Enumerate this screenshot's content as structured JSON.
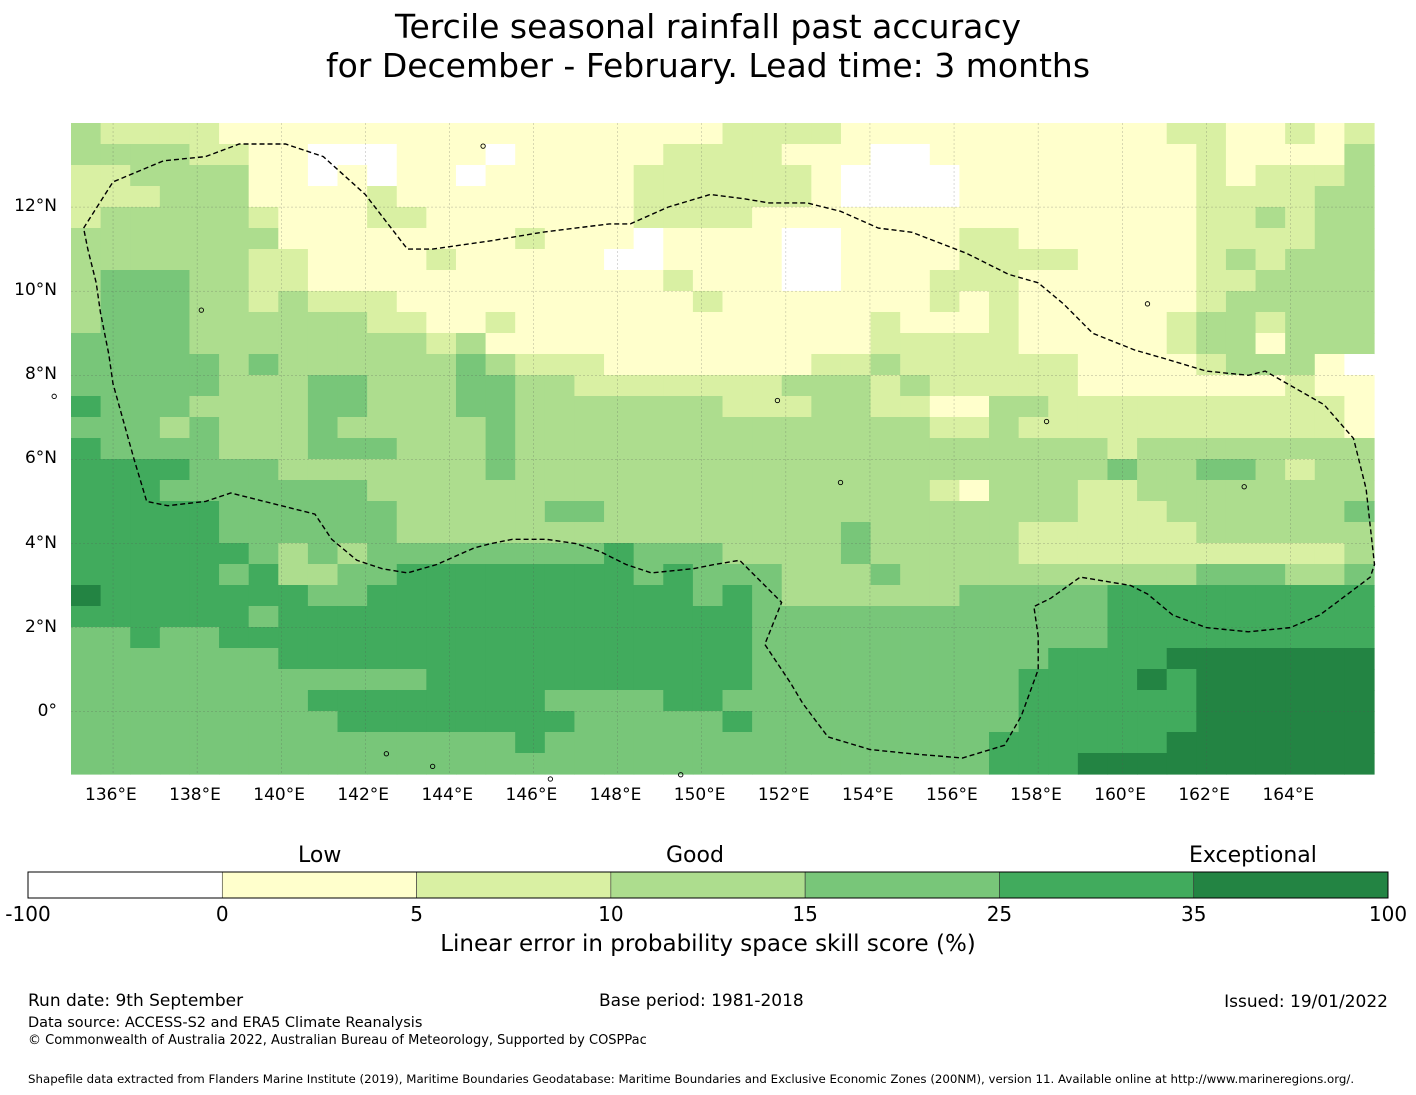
{
  "title_line1": "Tercile seasonal rainfall past accuracy",
  "title_line2": "for December - February. Lead time: 3 months",
  "map": {
    "lon_range": [
      135.0,
      166.0
    ],
    "lat_range": [
      -1.5,
      14.0
    ],
    "cell_deg": 0.83,
    "lon_ticks": [
      "136°E",
      "138°E",
      "140°E",
      "142°E",
      "144°E",
      "146°E",
      "148°E",
      "150°E",
      "152°E",
      "154°E",
      "156°E",
      "158°E",
      "160°E",
      "162°E",
      "164°E"
    ],
    "lat_ticks": [
      "12°N",
      "10°N",
      "8°N",
      "6°N",
      "4°N",
      "2°N",
      "0°"
    ],
    "grid_categories_note": "rows north to south, 0=white(<0) 1=0-5 2=5-10 3=10-15 4=15-25 5=25-35 6=35-100",
    "grid": [
      "32222111111111111111112222111111111112211212",
      "33332211000111011111222211100111111111211113",
      "22333311010110111112222221000011111111212223",
      "22233311112111111112222221000011111111222233",
      "23333321112211111112222111111111111111223233",
      "33333331111111121110111100111122111111222233",
      "33333322111121111100111100111122221111232333",
      "34443322111111111111211100111222111111223333",
      "34443323222111111111121111111212111111233333",
      "34443333332211211111111111121112111112332333",
      "44443333333323111111111111122222111112331333",
      "44444343333334322211111112232222221111233310",
      "44444333443334433222222233323222221111111211",
      "54443333443334433333332223322113322222222221",
      "44434333433333433333333333333223222222222221",
      "54444333444333433333333333333333333233333333",
      "55554443333333433333333333333333333433443233",
      "55544444443333333333333333333213332233333333",
      "55555444444333334433333333333333332223333334",
      "55555444444333333333333333433333222222333333",
      "55555543434444444454443333433333222222222223",
      "55555453344555555554544433343333333333444334",
      "65555555445555555555545433333344444555555555",
      "55555545555555555555555444444444444555555555",
      "44544555555555555555555444444444444555555555",
      "44444445555555555555555444444444455556666666",
      "44444444444455555555555444444444555565666666",
      "44444444555555554444554444444444555555666666",
      "44444444455555555444445444444444555555666666",
      "44444444444444454444444444444445555556666666",
      "44444444444444444444444444444445556666666666"
    ],
    "eez_boundary_lonlat": [
      [
        135.3,
        11.5
      ],
      [
        136.0,
        12.6
      ],
      [
        137.2,
        13.1
      ],
      [
        138.2,
        13.2
      ],
      [
        139.0,
        13.5
      ],
      [
        140.1,
        13.5
      ],
      [
        141.0,
        13.2
      ],
      [
        142.0,
        12.3
      ],
      [
        143.0,
        11.0
      ],
      [
        143.6,
        11.0
      ],
      [
        145.0,
        11.2
      ],
      [
        146.2,
        11.4
      ],
      [
        147.0,
        11.5
      ],
      [
        147.8,
        11.6
      ],
      [
        148.3,
        11.6
      ],
      [
        149.2,
        12.0
      ],
      [
        150.2,
        12.3
      ],
      [
        151.0,
        12.2
      ],
      [
        151.6,
        12.1
      ],
      [
        152.5,
        12.1
      ],
      [
        153.3,
        11.9
      ],
      [
        154.2,
        11.5
      ],
      [
        155.0,
        11.4
      ],
      [
        156.3,
        10.9
      ],
      [
        157.3,
        10.4
      ],
      [
        158.0,
        10.2
      ],
      [
        158.6,
        9.7
      ],
      [
        159.3,
        9.0
      ],
      [
        160.3,
        8.6
      ],
      [
        161.0,
        8.4
      ],
      [
        162.0,
        8.1
      ],
      [
        163.0,
        8.0
      ],
      [
        163.4,
        8.1
      ],
      [
        164.1,
        7.7
      ],
      [
        164.8,
        7.3
      ],
      [
        165.5,
        6.5
      ],
      [
        165.8,
        5.3
      ],
      [
        166.0,
        3.5
      ],
      [
        165.9,
        3.2
      ],
      [
        164.7,
        2.3
      ],
      [
        164.0,
        2.0
      ],
      [
        163.0,
        1.9
      ],
      [
        162.0,
        2.0
      ],
      [
        161.2,
        2.3
      ],
      [
        160.6,
        2.8
      ],
      [
        160.2,
        3.0
      ],
      [
        159.0,
        3.2
      ],
      [
        158.3,
        2.7
      ],
      [
        157.9,
        2.5
      ],
      [
        158.0,
        1.8
      ],
      [
        158.0,
        1.0
      ],
      [
        157.6,
        -0.1
      ],
      [
        157.2,
        -0.8
      ],
      [
        156.2,
        -1.1
      ],
      [
        155.0,
        -1.0
      ],
      [
        154.0,
        -0.9
      ],
      [
        153.0,
        -0.6
      ],
      [
        152.4,
        0.2
      ],
      [
        152.1,
        0.7
      ],
      [
        151.5,
        1.6
      ],
      [
        151.9,
        2.6
      ],
      [
        151.5,
        3.0
      ],
      [
        150.9,
        3.6
      ],
      [
        150.3,
        3.5
      ],
      [
        149.8,
        3.4
      ],
      [
        148.8,
        3.3
      ],
      [
        148.2,
        3.5
      ],
      [
        147.6,
        3.8
      ],
      [
        147.0,
        4.0
      ],
      [
        146.3,
        4.1
      ],
      [
        145.5,
        4.1
      ],
      [
        145.0,
        4.0
      ],
      [
        144.6,
        3.9
      ],
      [
        143.7,
        3.5
      ],
      [
        143.0,
        3.3
      ],
      [
        142.4,
        3.4
      ],
      [
        141.8,
        3.6
      ],
      [
        141.2,
        4.1
      ],
      [
        140.8,
        4.7
      ],
      [
        140.0,
        4.9
      ],
      [
        138.8,
        5.2
      ],
      [
        138.2,
        5.0
      ],
      [
        137.3,
        4.9
      ],
      [
        136.8,
        5.0
      ],
      [
        136.5,
        6.0
      ],
      [
        136.0,
        7.8
      ],
      [
        135.9,
        8.5
      ],
      [
        135.7,
        9.5
      ],
      [
        135.6,
        10.2
      ],
      [
        135.4,
        11.0
      ],
      [
        135.3,
        11.5
      ]
    ],
    "islands_lonlat": [
      [
        144.8,
        13.45
      ],
      [
        134.6,
        7.5
      ],
      [
        138.1,
        9.55
      ],
      [
        153.3,
        5.45
      ],
      [
        158.2,
        6.9
      ],
      [
        151.8,
        7.4
      ],
      [
        160.6,
        9.7
      ],
      [
        162.9,
        5.35
      ],
      [
        142.5,
        -1.0
      ],
      [
        146.4,
        -1.6
      ],
      [
        143.6,
        -1.3
      ],
      [
        149.5,
        -1.5
      ]
    ]
  },
  "legend": {
    "category_labels": {
      "low": "Low",
      "good": "Good",
      "exceptional": "Exceptional"
    },
    "bins": [
      {
        "from": "-100",
        "to": "0",
        "color": "#ffffff"
      },
      {
        "from": "0",
        "to": "5",
        "color": "#ffffcc"
      },
      {
        "from": "5",
        "to": "10",
        "color": "#d9f0a3"
      },
      {
        "from": "10",
        "to": "15",
        "color": "#addd8e"
      },
      {
        "from": "15",
        "to": "25",
        "color": "#78c679"
      },
      {
        "from": "25",
        "to": "35",
        "color": "#41ab5d"
      },
      {
        "from": "35",
        "to": "100",
        "color": "#238443"
      }
    ],
    "tick_labels": [
      "-100",
      "0",
      "5",
      "10",
      "15",
      "25",
      "35",
      "100"
    ],
    "axis_label": "Linear error in probability space skill score (%)"
  },
  "footer": {
    "run_date": "Run date: 9th September",
    "base_period": "Base period: 1981-2018",
    "issued": "Issued: 19/01/2022",
    "data_source": "Data source: ACCESS-S2 and ERA5 Climate Reanalysis",
    "copyright": "© Commonwealth of Australia 2022, Australian Bureau of Meteorology, Supported by COSPPac",
    "shapefile_note": "Shapefile data extracted from Flanders Marine Institute (2019), Maritime Boundaries Geodatabase: Maritime Boundaries and Exclusive Economic Zones (200NM), version 11. Available online at http://www.marineregions.org/."
  }
}
